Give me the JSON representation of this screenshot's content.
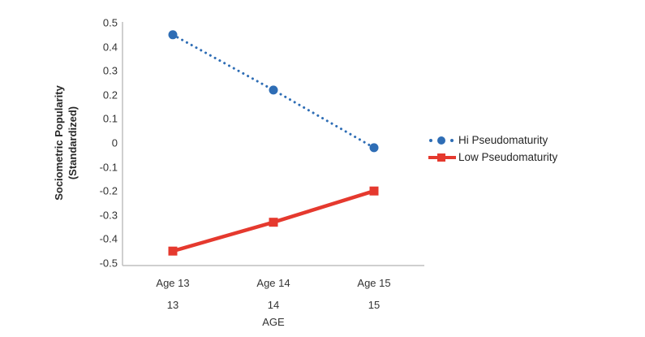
{
  "chart_data": {
    "type": "line",
    "title": "",
    "categories": [
      "Age 13",
      "Age 14",
      "Age 15"
    ],
    "secondary_categories": [
      "13",
      "14",
      "15"
    ],
    "xlabel": "AGE",
    "ylabel": "Sociometric Popularity (Standardized)",
    "ylabel_line1": "Sociometric Popularity",
    "ylabel_line2": "(Standardized)",
    "ylim": [
      -0.5,
      0.5
    ],
    "yticks": [
      "0.5",
      "0.4",
      "0.3",
      "0.2",
      "0.1",
      "0",
      "-0.1",
      "-0.2",
      "-0.3",
      "-0.4",
      "-0.5"
    ],
    "grid": false,
    "legend_position": "right",
    "axis_color": "#bfbfbf",
    "series": [
      {
        "name": "Hi Pseudomaturity",
        "values": [
          0.45,
          0.22,
          -0.02
        ],
        "color": "#2e6db5",
        "line_style": "dotted",
        "marker": "circle"
      },
      {
        "name": "Low Pseudomaturity",
        "values": [
          -0.45,
          -0.33,
          -0.2
        ],
        "color": "#e5392e",
        "line_style": "solid",
        "marker": "square"
      }
    ]
  }
}
